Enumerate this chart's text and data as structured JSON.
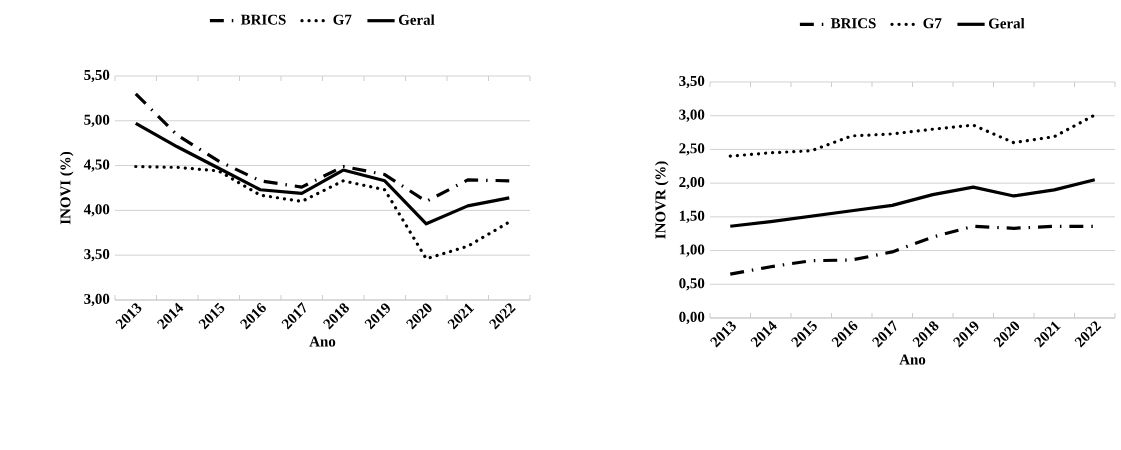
{
  "chart_data": [
    {
      "type": "line",
      "xlabel": "Ano",
      "ylabel": "INOVI (%)",
      "categories": [
        "2013",
        "2014",
        "2015",
        "2016",
        "2017",
        "2018",
        "2019",
        "2020",
        "2021",
        "2022"
      ],
      "series": [
        {
          "name": "BRICS",
          "color": "#000000",
          "line_style": "dashed",
          "values": [
            5.3,
            4.84,
            4.55,
            4.33,
            4.26,
            4.49,
            4.4,
            4.1,
            4.34,
            4.33
          ]
        },
        {
          "name": "G7",
          "color": "#000000",
          "line_style": "dotted",
          "values": [
            4.49,
            4.48,
            4.44,
            4.17,
            4.1,
            4.33,
            4.23,
            3.46,
            3.6,
            3.87
          ]
        },
        {
          "name": "Geral",
          "color": "#000000",
          "line_style": "solid",
          "values": [
            4.97,
            4.71,
            4.47,
            4.23,
            4.19,
            4.45,
            4.33,
            3.85,
            4.05,
            4.14
          ]
        }
      ],
      "ylim": [
        3.0,
        5.5
      ],
      "yticks": [
        {
          "value": 3.0,
          "label": "3,00"
        },
        {
          "value": 3.5,
          "label": "3,50"
        },
        {
          "value": 4.0,
          "label": "4,00"
        },
        {
          "value": 4.5,
          "label": "4,50"
        },
        {
          "value": 5.0,
          "label": "5,00"
        },
        {
          "value": 5.5,
          "label": "5,50"
        }
      ],
      "grid": "y",
      "legend": "top"
    },
    {
      "type": "line",
      "xlabel": "Ano",
      "ylabel": "INOVR (%)",
      "categories": [
        "2013",
        "2014",
        "2015",
        "2016",
        "2017",
        "2018",
        "2019",
        "2020",
        "2021",
        "2022"
      ],
      "series": [
        {
          "name": "BRICS",
          "color": "#000000",
          "line_style": "dashed",
          "values": [
            0.65,
            0.76,
            0.85,
            0.86,
            0.98,
            1.2,
            1.36,
            1.33,
            1.36,
            1.36
          ]
        },
        {
          "name": "G7",
          "color": "#000000",
          "line_style": "dotted",
          "values": [
            2.4,
            2.45,
            2.48,
            2.7,
            2.73,
            2.8,
            2.86,
            2.6,
            2.69,
            3.01
          ]
        },
        {
          "name": "Geral",
          "color": "#000000",
          "line_style": "solid",
          "values": [
            1.36,
            1.43,
            1.51,
            1.59,
            1.67,
            1.83,
            1.94,
            1.81,
            1.9,
            2.05
          ]
        }
      ],
      "ylim": [
        0.0,
        3.5
      ],
      "yticks": [
        {
          "value": 0.0,
          "label": "0,00"
        },
        {
          "value": 0.5,
          "label": "0,50"
        },
        {
          "value": 1.0,
          "label": "1,00"
        },
        {
          "value": 1.5,
          "label": "1,50"
        },
        {
          "value": 2.0,
          "label": "2,00"
        },
        {
          "value": 2.5,
          "label": "2,50"
        },
        {
          "value": 3.0,
          "label": "3,00"
        },
        {
          "value": 3.5,
          "label": "3,50"
        }
      ],
      "grid": "y",
      "legend": "top"
    }
  ]
}
